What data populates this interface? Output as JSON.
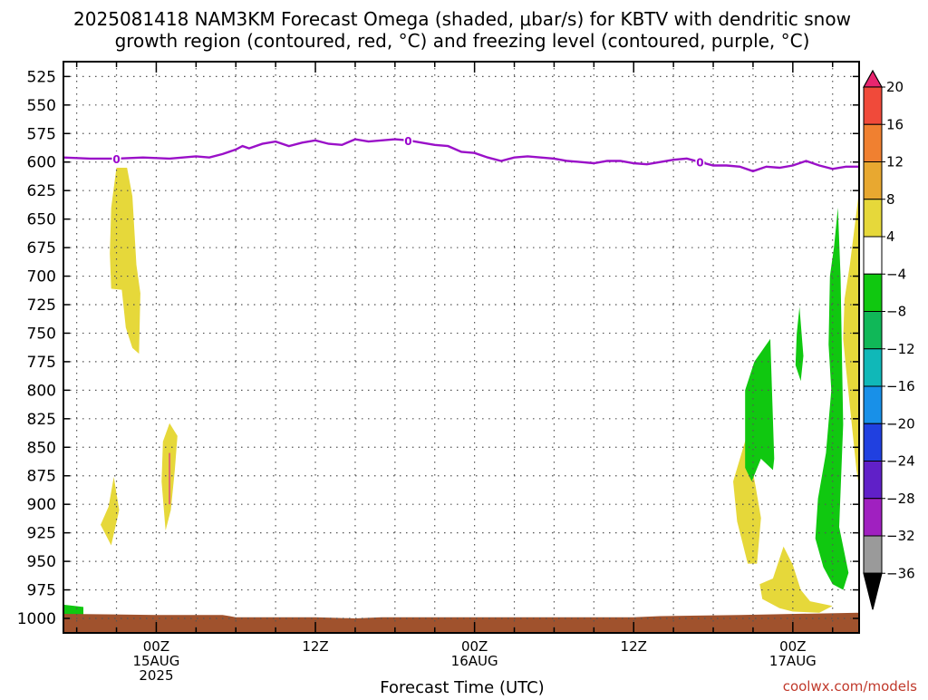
{
  "title": {
    "line1": "2025081418 NAM3KM Forecast Omega (shaded, μbar/s) for KBTV with dendritic snow",
    "line2": "growth region (contoured, red, °C) and freezing level (contoured, purple, °C)"
  },
  "credit": "coolwx.com/models",
  "colors": {
    "freezing_level": "#9a10c8",
    "terrain": "#a0522d",
    "grid": "#555555"
  },
  "chart_data": {
    "type": "heatmap",
    "xlabel": "Forecast Time (UTC)",
    "ylabel": "",
    "x_range_hours": [
      -7,
      53
    ],
    "y_range_hpa": [
      1000,
      512
    ],
    "y_ticks": [
      525,
      550,
      575,
      600,
      625,
      650,
      675,
      700,
      725,
      750,
      775,
      800,
      825,
      850,
      875,
      900,
      925,
      950,
      975,
      1000
    ],
    "x_ticks": [
      {
        "hour": 0,
        "lines": [
          "00Z",
          "15AUG",
          "2025"
        ]
      },
      {
        "hour": 12,
        "lines": [
          "12Z"
        ]
      },
      {
        "hour": 24,
        "lines": [
          "00Z",
          "16AUG"
        ]
      },
      {
        "hour": 36,
        "lines": [
          "12Z"
        ]
      },
      {
        "hour": 48,
        "lines": [
          "00Z",
          "17AUG"
        ]
      }
    ],
    "grid": true,
    "colorbar": {
      "levels": [
        20,
        16,
        12,
        8,
        4,
        -4,
        -8,
        -12,
        -16,
        -20,
        -24,
        -28,
        -32,
        -36
      ],
      "colors": [
        "#e8256f",
        "#f04a3a",
        "#f08030",
        "#e8a830",
        "#e6d83a",
        "#ffffff",
        "#10c810",
        "#10b858",
        "#10b8b8",
        "#1890e8",
        "#2040e0",
        "#6020c8",
        "#a020c0",
        "#9a9a9a",
        "#000000"
      ]
    },
    "freezing_level_0C": {
      "label": "0",
      "points": [
        [
          -7,
          596
        ],
        [
          -5,
          597
        ],
        [
          -3,
          597
        ],
        [
          -1,
          596
        ],
        [
          1,
          597
        ],
        [
          3,
          595
        ],
        [
          4,
          596
        ],
        [
          5,
          593
        ],
        [
          6,
          589
        ],
        [
          6.5,
          586
        ],
        [
          7,
          588
        ],
        [
          8,
          584
        ],
        [
          9,
          582
        ],
        [
          10,
          586
        ],
        [
          11,
          583
        ],
        [
          12,
          581
        ],
        [
          13,
          584
        ],
        [
          14,
          585
        ],
        [
          15,
          580
        ],
        [
          16,
          582
        ],
        [
          17,
          581
        ],
        [
          18,
          580
        ],
        [
          19,
          581
        ],
        [
          20,
          583
        ],
        [
          21,
          585
        ],
        [
          22,
          586
        ],
        [
          23,
          591
        ],
        [
          24,
          592
        ],
        [
          25,
          596
        ],
        [
          26,
          599
        ],
        [
          27,
          596
        ],
        [
          28,
          595
        ],
        [
          29,
          596
        ],
        [
          30,
          597
        ],
        [
          31,
          599
        ],
        [
          32,
          600
        ],
        [
          33,
          601
        ],
        [
          34,
          599
        ],
        [
          35,
          599
        ],
        [
          36,
          601
        ],
        [
          37,
          602
        ],
        [
          38,
          600
        ],
        [
          39,
          598
        ],
        [
          40,
          597
        ],
        [
          41,
          600
        ],
        [
          42,
          603
        ],
        [
          43,
          603
        ],
        [
          44,
          604
        ],
        [
          45,
          608
        ],
        [
          46,
          604
        ],
        [
          47,
          605
        ],
        [
          48,
          603
        ],
        [
          49,
          599
        ],
        [
          50,
          603
        ],
        [
          51,
          606
        ],
        [
          52,
          604
        ],
        [
          53,
          604
        ]
      ]
    },
    "surface_pressure": [
      [
        -7,
        996
      ],
      [
        0,
        997
      ],
      [
        5,
        997
      ],
      [
        6,
        999
      ],
      [
        12,
        999
      ],
      [
        15,
        1000
      ],
      [
        17,
        999
      ],
      [
        30,
        999
      ],
      [
        36,
        999
      ],
      [
        38,
        998
      ],
      [
        44,
        997
      ],
      [
        53,
        995
      ]
    ],
    "omega_regions": [
      {
        "value": 6,
        "points": [
          [
            -3,
            605
          ],
          [
            -2.2,
            605
          ],
          [
            -1.8,
            630
          ],
          [
            -1.5,
            690
          ],
          [
            -1.2,
            715
          ],
          [
            -1.3,
            768
          ],
          [
            -1.8,
            763
          ],
          [
            -2.3,
            745
          ],
          [
            -2.6,
            712
          ],
          [
            -3.4,
            711
          ],
          [
            -3.5,
            680
          ],
          [
            -3.4,
            640
          ]
        ]
      },
      {
        "value": 6,
        "points": [
          [
            -3.2,
            876
          ],
          [
            -2.8,
            905
          ],
          [
            -3.4,
            936
          ],
          [
            -4.2,
            918
          ],
          [
            -3.6,
            902
          ]
        ]
      },
      {
        "value": 6,
        "points": [
          [
            1,
            829
          ],
          [
            1.6,
            840
          ],
          [
            1.4,
            870
          ],
          [
            1.1,
            905
          ],
          [
            0.7,
            923
          ],
          [
            0.4,
            880
          ],
          [
            0.5,
            845
          ]
        ]
      },
      {
        "value": 6,
        "points": [
          [
            44.5,
            841
          ],
          [
            45.2,
            885
          ],
          [
            45.6,
            912
          ],
          [
            45.3,
            952
          ],
          [
            44.6,
            952
          ],
          [
            43.8,
            915
          ],
          [
            43.5,
            880
          ]
        ]
      },
      {
        "value": 6,
        "points": [
          [
            47.3,
            937
          ],
          [
            48,
            953
          ],
          [
            48.6,
            975
          ],
          [
            49.3,
            985
          ],
          [
            51,
            989
          ],
          [
            50,
            995
          ],
          [
            48,
            994
          ],
          [
            47,
            991
          ],
          [
            45.7,
            983
          ],
          [
            45.5,
            970
          ],
          [
            46.5,
            965
          ]
        ]
      },
      {
        "value": 6,
        "points": [
          [
            53,
            625
          ],
          [
            53,
            885
          ],
          [
            52.8,
            870
          ],
          [
            52,
            780
          ],
          [
            51.8,
            755
          ],
          [
            51.9,
            720
          ],
          [
            52.3,
            690
          ]
        ]
      },
      {
        "value": -6,
        "points": [
          [
            46.3,
            755
          ],
          [
            46.6,
            860
          ],
          [
            46.5,
            870
          ],
          [
            45.6,
            860
          ],
          [
            44.9,
            880
          ],
          [
            44.4,
            868
          ],
          [
            44.4,
            800
          ],
          [
            45.1,
            775
          ]
        ]
      },
      {
        "value": -6,
        "points": [
          [
            51.4,
            640
          ],
          [
            51.6,
            700
          ],
          [
            51.8,
            830
          ],
          [
            51.5,
            920
          ],
          [
            52.2,
            960
          ],
          [
            51.8,
            975
          ],
          [
            51,
            970
          ],
          [
            50.3,
            955
          ],
          [
            49.7,
            930
          ],
          [
            49.9,
            895
          ],
          [
            50.5,
            855
          ],
          [
            50.9,
            800
          ],
          [
            50.7,
            760
          ],
          [
            50.8,
            700
          ],
          [
            51.1,
            675
          ]
        ]
      },
      {
        "value": -6,
        "points": [
          [
            48.5,
            727
          ],
          [
            48.8,
            770
          ],
          [
            48.6,
            792
          ],
          [
            48.2,
            778
          ],
          [
            48.3,
            750
          ]
        ]
      },
      {
        "value": -6,
        "points": [
          [
            -7,
            988
          ],
          [
            -5.5,
            990
          ],
          [
            -5.5,
            997
          ],
          [
            -7,
            997
          ]
        ]
      }
    ],
    "dgz_contour_red": {
      "points": [
        [
          1.0,
          855
        ],
        [
          1.0,
          900
        ]
      ]
    }
  }
}
